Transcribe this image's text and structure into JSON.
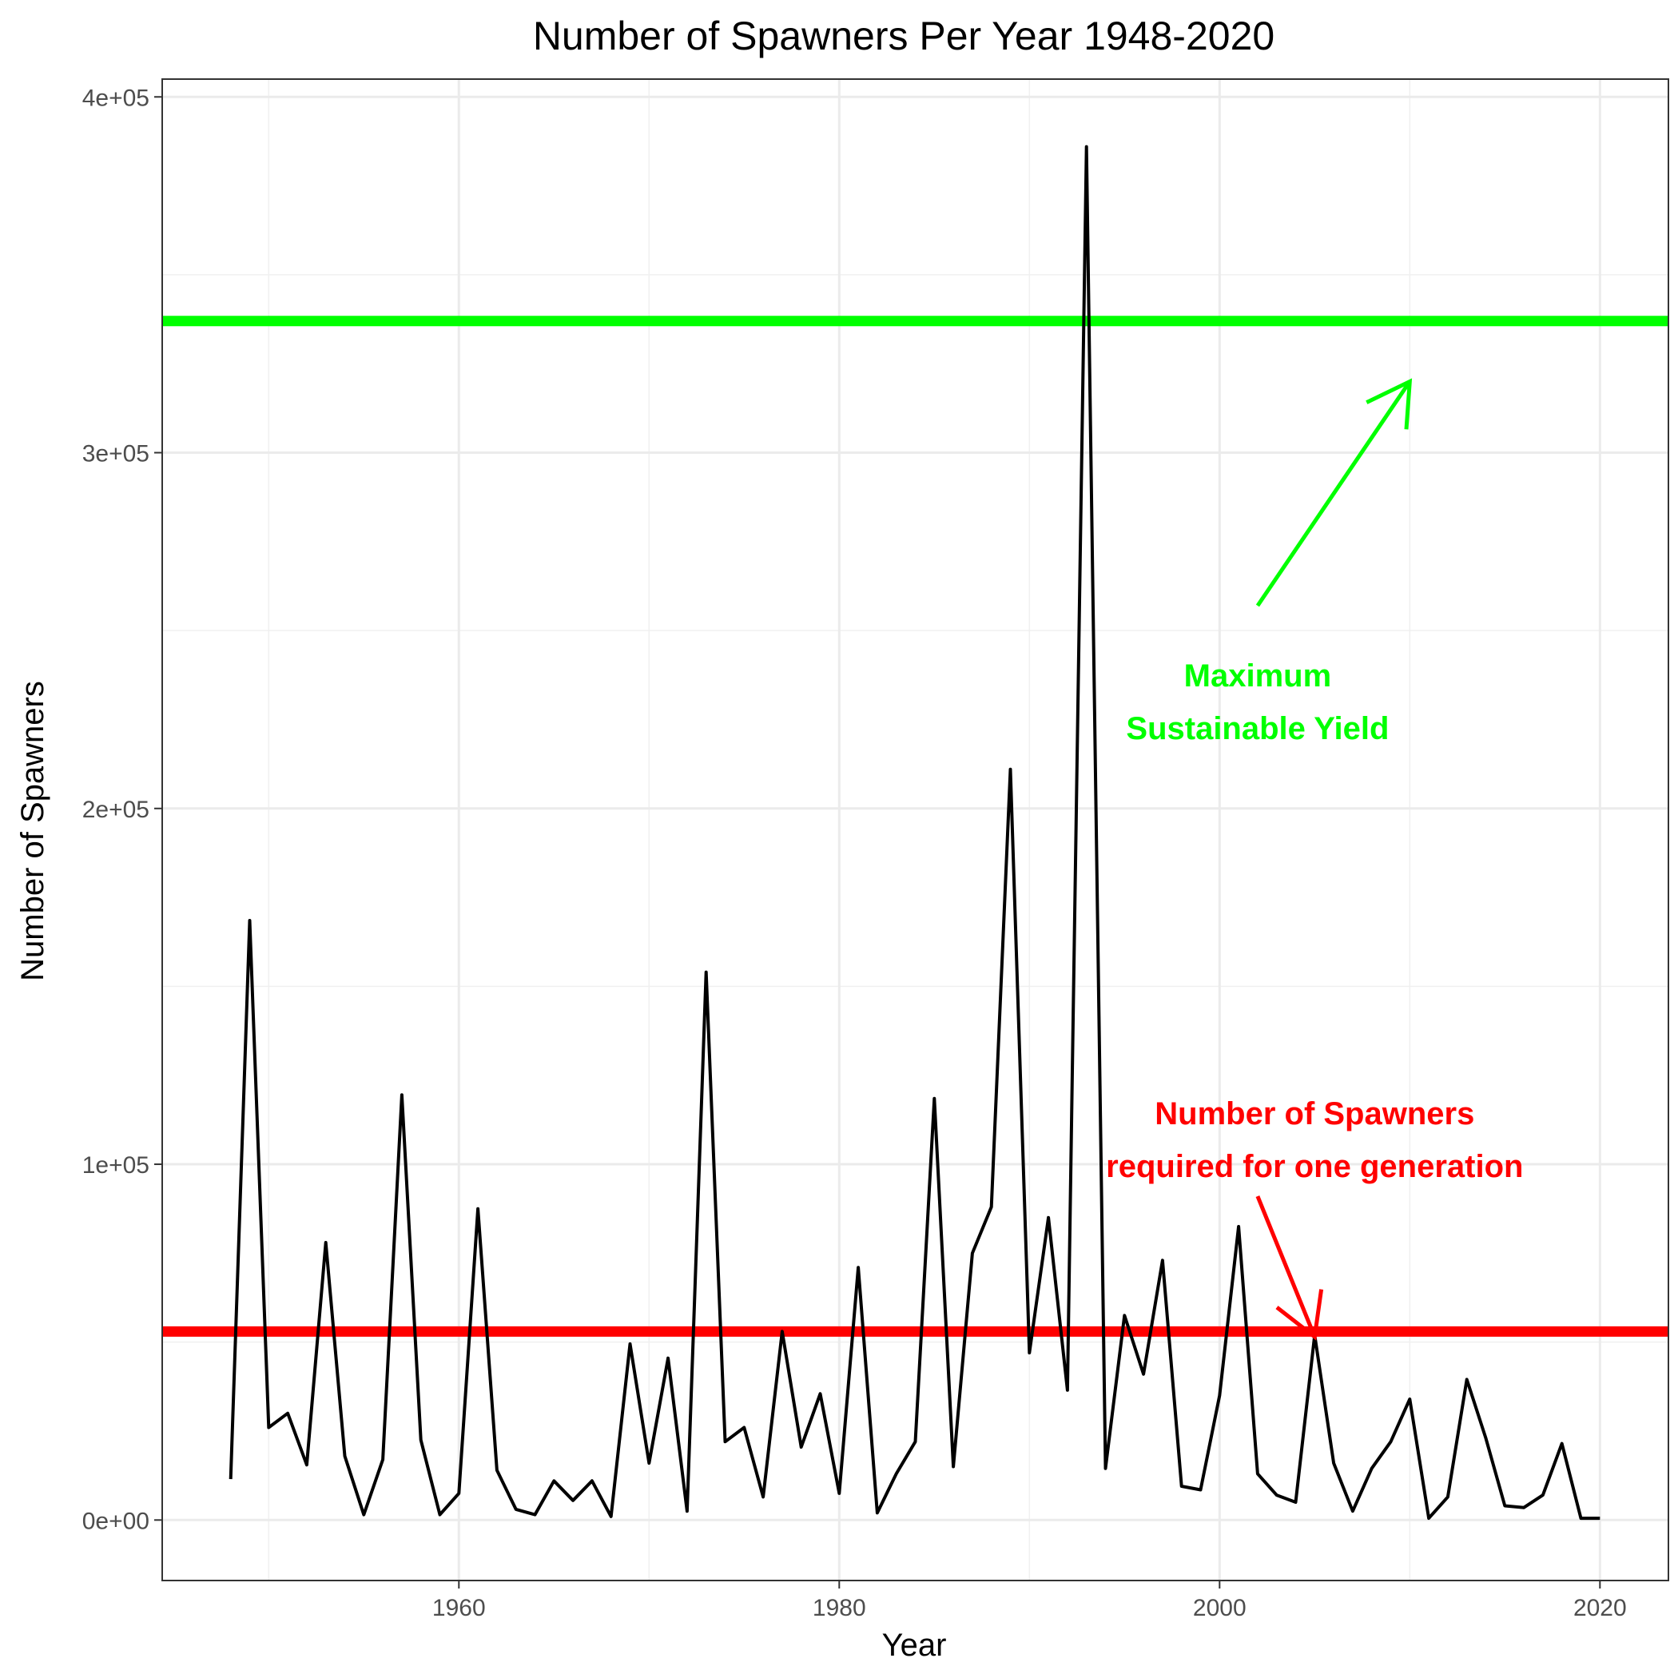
{
  "chart_data": {
    "type": "line",
    "title": "Number of Spawners Per Year 1948-2020",
    "xlabel": "Year",
    "ylabel": "Number of Spawners",
    "xlim": [
      1944.4,
      2023.6
    ],
    "ylim": [
      -17000,
      405000
    ],
    "x_ticks": [
      1960,
      1980,
      2000,
      2020
    ],
    "x_minor_ticks": [
      1950,
      1970,
      1990,
      2010
    ],
    "y_ticks": [
      0,
      100000,
      200000,
      300000,
      400000
    ],
    "y_tick_labels": [
      "0e+00",
      "1e+05",
      "2e+05",
      "3e+05",
      "4e+05"
    ],
    "y_minor_ticks": [
      50000,
      150000,
      250000,
      350000
    ],
    "grid": true,
    "series": [
      {
        "color": "#000000",
        "x": [
          1948,
          1949,
          1950,
          1951,
          1952,
          1953,
          1954,
          1955,
          1956,
          1957,
          1958,
          1959,
          1960,
          1961,
          1962,
          1963,
          1964,
          1965,
          1966,
          1967,
          1968,
          1969,
          1970,
          1971,
          1972,
          1973,
          1974,
          1975,
          1976,
          1977,
          1978,
          1979,
          1980,
          1981,
          1982,
          1983,
          1984,
          1985,
          1986,
          1987,
          1988,
          1989,
          1990,
          1991,
          1992,
          1993,
          1994,
          1995,
          1996,
          1997,
          1998,
          1999,
          2000,
          2001,
          2002,
          2003,
          2004,
          2005,
          2006,
          2007,
          2008,
          2009,
          2010,
          2011,
          2012,
          2013,
          2014,
          2015,
          2016,
          2017,
          2018,
          2019,
          2020
        ],
        "y": [
          11500,
          168500,
          26000,
          30000,
          15500,
          78000,
          18000,
          1500,
          17000,
          119500,
          22500,
          1500,
          7500,
          87500,
          14000,
          3000,
          1500,
          11000,
          5500,
          11000,
          1000,
          49500,
          16000,
          45500,
          2500,
          154000,
          22000,
          26000,
          6500,
          53000,
          20500,
          35500,
          7500,
          71000,
          2000,
          13000,
          22000,
          118500,
          15000,
          75000,
          88000,
          211000,
          47000,
          85000,
          36500,
          386000,
          14500,
          57500,
          41000,
          73000,
          9500,
          8500,
          35000,
          82500,
          13000,
          7000,
          5000,
          52000,
          16000,
          2500,
          14500,
          22000,
          34000,
          500,
          6500,
          39500,
          23000,
          4000,
          3500,
          7000,
          21500,
          500,
          500
        ]
      }
    ],
    "reference_lines": [
      {
        "y": 337000,
        "color": "#00ff00"
      },
      {
        "y": 53000,
        "color": "#ff0000"
      }
    ],
    "annotations": [
      {
        "lines": [
          "Maximum",
          "Sustainable Yield"
        ],
        "x": 2002,
        "y": 230000,
        "color": "#00ff00",
        "arrow": {
          "from": [
            2002,
            257000
          ],
          "to": [
            2010,
            320000
          ]
        }
      },
      {
        "lines": [
          "Number of Spawners",
          "required for one generation"
        ],
        "x": 2005,
        "y": 107000,
        "color": "#ff0000",
        "arrow": {
          "from": [
            2002,
            91000
          ],
          "to": [
            2005,
            51500
          ]
        }
      }
    ]
  }
}
